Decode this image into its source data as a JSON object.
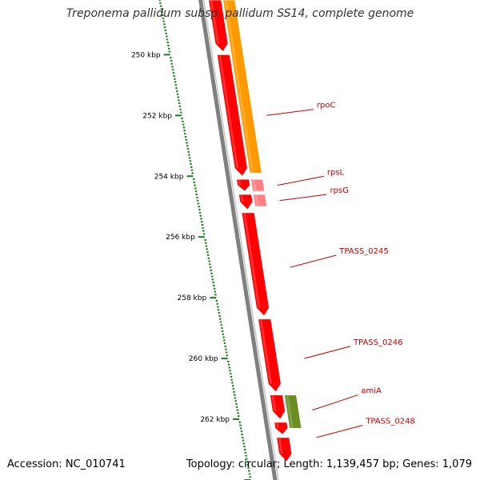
{
  "title": "Treponema pallidum subsp. pallidum SS14, complete genome",
  "accession_text": "Accession: NC_010741",
  "summary_text": "Topology: circular; Length: 1,139,457 bp; Genes: 1,079",
  "colors": {
    "tick_green": "#1a7f1a",
    "backbone": "#7f7f7f",
    "gene_red": "#ff0000",
    "gene_orange": "#ff9900",
    "gene_pink": "#ff8080",
    "gene_olive": "#6b8e23",
    "label_red": "#cc0000"
  },
  "scale": {
    "unit": "kbp",
    "range_kbp": [
      248.2,
      264.0
    ],
    "tick_labels": [
      {
        "kbp": 250,
        "text": "250 kbp"
      },
      {
        "kbp": 252,
        "text": "252 kbp"
      },
      {
        "kbp": 254,
        "text": "254 kbp"
      },
      {
        "kbp": 256,
        "text": "256 kbp"
      },
      {
        "kbp": 258,
        "text": "258 kbp"
      },
      {
        "kbp": 260,
        "text": "260 kbp"
      },
      {
        "kbp": 262,
        "text": "262 kbp"
      }
    ]
  },
  "genes": [
    {
      "label": "",
      "start_kbp": 248.2,
      "end_kbp": 249.9,
      "track": "inner",
      "color": "#ff0000"
    },
    {
      "label": "",
      "start_kbp": 250.0,
      "end_kbp": 254.0,
      "track": "inner",
      "color": "#ff0000"
    },
    {
      "label": "",
      "start_kbp": 254.1,
      "end_kbp": 254.5,
      "track": "inner",
      "color": "#ff0000"
    },
    {
      "label": "",
      "start_kbp": 254.6,
      "end_kbp": 255.1,
      "track": "inner",
      "color": "#ff0000"
    },
    {
      "label": "",
      "start_kbp": 255.2,
      "end_kbp": 258.6,
      "track": "inner",
      "color": "#ff0000"
    },
    {
      "label": "",
      "start_kbp": 258.7,
      "end_kbp": 261.1,
      "track": "inner",
      "color": "#ff0000"
    },
    {
      "label": "",
      "start_kbp": 261.2,
      "end_kbp": 262.0,
      "track": "inner",
      "color": "#ff0000"
    },
    {
      "label": "",
      "start_kbp": 262.1,
      "end_kbp": 262.5,
      "track": "inner",
      "color": "#ff0000"
    },
    {
      "label": "",
      "start_kbp": 262.6,
      "end_kbp": 263.4,
      "track": "inner",
      "color": "#ff0000"
    },
    {
      "label": "",
      "start_kbp": 248.2,
      "end_kbp": 253.9,
      "track": "outer",
      "color": "#ff9900"
    },
    {
      "label": "",
      "start_kbp": 254.1,
      "end_kbp": 254.5,
      "track": "outer",
      "color": "#ff8080"
    },
    {
      "label": "",
      "start_kbp": 254.6,
      "end_kbp": 255.0,
      "track": "outer",
      "color": "#ff8080"
    },
    {
      "label": "",
      "start_kbp": 261.2,
      "end_kbp": 262.3,
      "track": "outer",
      "color": "#6b8e23"
    }
  ],
  "gene_labels": [
    {
      "text": "rpoC",
      "target_kbp": 252.0,
      "label_kbp": 251.8
    },
    {
      "text": "rpsL",
      "target_kbp": 254.3,
      "label_kbp": 254.0
    },
    {
      "text": "rpsG",
      "target_kbp": 254.8,
      "label_kbp": 254.6
    },
    {
      "text": "TPASS_0245",
      "target_kbp": 257.0,
      "label_kbp": 256.6
    },
    {
      "text": "TPASS_0246",
      "target_kbp": 260.0,
      "label_kbp": 259.6
    },
    {
      "text": "amiA",
      "target_kbp": 261.7,
      "label_kbp": 261.2
    },
    {
      "text": "TPASS_0248",
      "target_kbp": 262.6,
      "label_kbp": 262.2
    }
  ]
}
